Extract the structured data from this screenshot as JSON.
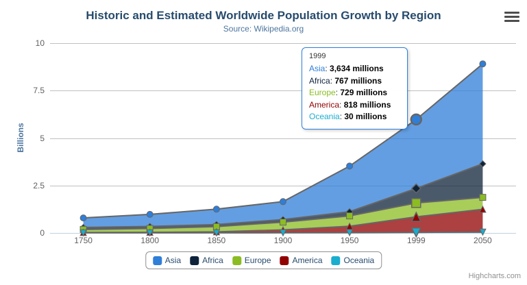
{
  "chart": {
    "title": "Historic and Estimated Worldwide Population Growth by Region",
    "subtitle": "Source: Wikipedia.org",
    "credits": "Highcharts.com",
    "menu_icon": "hamburger-menu-icon"
  },
  "tooltip": {
    "header": "1999",
    "rows": [
      {
        "name": "Asia",
        "value": "3,634 millions",
        "color": "#2f7ed8"
      },
      {
        "name": "Africa",
        "value": "767 millions",
        "color": "#0d233a"
      },
      {
        "name": "Europe",
        "value": "729 millions",
        "color": "#8bbc21"
      },
      {
        "name": "America",
        "value": "818 millions",
        "color": "#910000"
      },
      {
        "name": "Oceania",
        "value": "30 millions",
        "color": "#1aadce"
      }
    ]
  },
  "chart_data": {
    "type": "area",
    "stacking": "normal",
    "reversed_stacks": true,
    "title": "Historic and Estimated Worldwide Population Growth by Region",
    "subtitle": "Source: Wikipedia.org",
    "xlabel": "",
    "ylabel": "Billions",
    "unit": "millions",
    "ylim": [
      0,
      10
    ],
    "yticks": [
      0,
      2.5,
      5,
      7.5,
      10
    ],
    "grid": true,
    "legend_position": "bottom",
    "categories": [
      "1750",
      "1800",
      "1850",
      "1900",
      "1950",
      "1999",
      "2050"
    ],
    "hover_index": 5,
    "line_color": "#666666",
    "fill_opacity": 0.75,
    "grid_color": "#C0C0C0",
    "axis_line_color": "#C0D0E0",
    "series": [
      {
        "name": "Asia",
        "color": "#2f7ed8",
        "marker": "circle",
        "values": [
          502,
          635,
          809,
          947,
          2402,
          3634,
          5268
        ]
      },
      {
        "name": "Africa",
        "color": "#0d233a",
        "marker": "diamond",
        "values": [
          106,
          107,
          111,
          133,
          221,
          767,
          1766
        ]
      },
      {
        "name": "Europe",
        "color": "#8bbc21",
        "marker": "square",
        "values": [
          163,
          203,
          276,
          408,
          547,
          729,
          628
        ]
      },
      {
        "name": "America",
        "color": "#910000",
        "marker": "triangle",
        "values": [
          18,
          31,
          54,
          156,
          339,
          818,
          1201
        ]
      },
      {
        "name": "Oceania",
        "color": "#1aadce",
        "marker": "triangle-down",
        "values": [
          2,
          2,
          2,
          6,
          13,
          30,
          46
        ]
      }
    ]
  }
}
